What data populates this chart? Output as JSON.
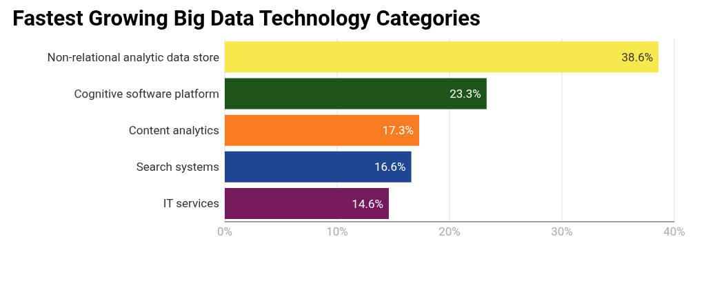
{
  "chart_data": {
    "type": "bar",
    "orientation": "horizontal",
    "title": "Fastest Growing Big Data Technology Categories",
    "categories": [
      "Non-relational analytic data store",
      "Cognitive software platform",
      "Content analytics",
      "Search systems",
      "IT services"
    ],
    "values": [
      38.6,
      23.3,
      17.3,
      16.6,
      14.6
    ],
    "colors": [
      "#f7e84e",
      "#1e5319",
      "#f97b22",
      "#1f4690",
      "#751a5c"
    ],
    "value_labels": [
      "38.6%",
      "23.3%",
      "17.3%",
      "16.6%",
      "14.6%"
    ],
    "xlim": [
      0,
      40
    ],
    "xticks": [
      {
        "value": 0,
        "label": "0%"
      },
      {
        "value": 10,
        "label": "10%"
      },
      {
        "value": 20,
        "label": "20%"
      },
      {
        "value": 30,
        "label": "30%"
      },
      {
        "value": 40,
        "label": "40%"
      }
    ],
    "grid": "x"
  }
}
